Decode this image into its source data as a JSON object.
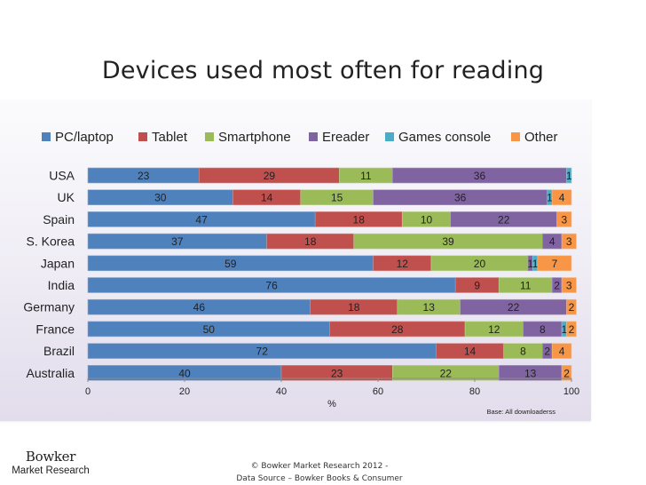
{
  "title": "Devices used most often for reading",
  "chart_data": {
    "type": "bar",
    "orientation": "horizontal",
    "stacked": true,
    "title": "Devices used most often for reading",
    "xlabel": "%",
    "ylabel": "",
    "xlim": [
      0,
      100
    ],
    "xticks": [
      0,
      20,
      40,
      60,
      80,
      100
    ],
    "legend_position": "top",
    "grid": false,
    "categories": [
      "USA",
      "UK",
      "Spain",
      "S. Korea",
      "Japan",
      "India",
      "Germany",
      "France",
      "Brazil",
      "Australia"
    ],
    "series": [
      {
        "name": "PC/laptop",
        "color": "#4f81bd",
        "values": [
          23,
          30,
          47,
          37,
          59,
          76,
          46,
          50,
          72,
          40
        ]
      },
      {
        "name": "Tablet",
        "color": "#c0504d",
        "values": [
          29,
          14,
          18,
          18,
          12,
          9,
          18,
          28,
          14,
          23
        ]
      },
      {
        "name": "Smartphone",
        "color": "#9bbb59",
        "values": [
          11,
          15,
          10,
          39,
          20,
          11,
          13,
          12,
          8,
          22
        ]
      },
      {
        "name": "Ereader",
        "color": "#8064a2",
        "values": [
          36,
          36,
          22,
          4,
          1,
          2,
          22,
          8,
          2,
          13
        ]
      },
      {
        "name": "Games console",
        "color": "#4bacc6",
        "values": [
          1,
          1,
          0,
          0,
          1,
          0,
          0,
          1,
          0,
          0
        ]
      },
      {
        "name": "Other",
        "color": "#f79646",
        "values": [
          0,
          4,
          3,
          3,
          7,
          3,
          2,
          2,
          4,
          2
        ]
      }
    ],
    "note": "Base: All downloaderss"
  },
  "logo": {
    "name": "Bowker",
    "subtitle": "Market Research"
  },
  "footer": {
    "line1": "© Bowker Market Research 2012 -",
    "line2": "Data Source – Bowker Books & Consumer"
  }
}
